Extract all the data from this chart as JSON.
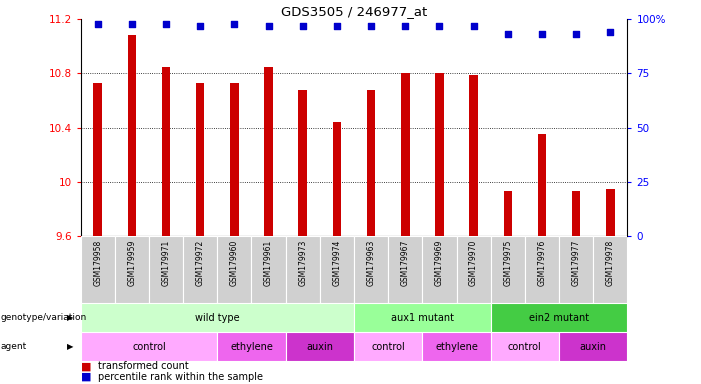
{
  "title": "GDS3505 / 246977_at",
  "samples": [
    "GSM179958",
    "GSM179959",
    "GSM179971",
    "GSM179972",
    "GSM179960",
    "GSM179961",
    "GSM179973",
    "GSM179974",
    "GSM179963",
    "GSM179967",
    "GSM179969",
    "GSM179970",
    "GSM179975",
    "GSM179976",
    "GSM179977",
    "GSM179978"
  ],
  "bar_values": [
    10.73,
    11.08,
    10.85,
    10.73,
    10.73,
    10.85,
    10.68,
    10.44,
    10.68,
    10.8,
    10.8,
    10.79,
    9.93,
    10.35,
    9.93,
    9.95
  ],
  "percentile_values": [
    98,
    98,
    98,
    97,
    98,
    97,
    97,
    97,
    97,
    97,
    97,
    97,
    93,
    93,
    93,
    94
  ],
  "ylim_left": [
    9.6,
    11.2
  ],
  "ylim_right": [
    0,
    100
  ],
  "bar_color": "#cc0000",
  "dot_color": "#0000cc",
  "bar_width": 0.25,
  "right_yticks": [
    0,
    25,
    50,
    75,
    100
  ],
  "right_yticklabels": [
    "0",
    "25",
    "50",
    "75",
    "100%"
  ],
  "left_yticks": [
    9.6,
    10.0,
    10.4,
    10.8,
    11.2
  ],
  "left_yticklabels": [
    "9.6",
    "10",
    "10.4",
    "10.8",
    "11.2"
  ],
  "genotype_groups": [
    {
      "label": "wild type",
      "start": 0,
      "end": 8,
      "color": "#ccffcc"
    },
    {
      "label": "aux1 mutant",
      "start": 8,
      "end": 12,
      "color": "#99ff99"
    },
    {
      "label": "ein2 mutant",
      "start": 12,
      "end": 16,
      "color": "#44cc44"
    }
  ],
  "agent_groups": [
    {
      "label": "control",
      "start": 0,
      "end": 4,
      "color": "#ffaaff"
    },
    {
      "label": "ethylene",
      "start": 4,
      "end": 6,
      "color": "#ee66ee"
    },
    {
      "label": "auxin",
      "start": 6,
      "end": 8,
      "color": "#cc33cc"
    },
    {
      "label": "control",
      "start": 8,
      "end": 10,
      "color": "#ffaaff"
    },
    {
      "label": "ethylene",
      "start": 10,
      "end": 12,
      "color": "#ee66ee"
    },
    {
      "label": "control",
      "start": 12,
      "end": 14,
      "color": "#ffaaff"
    },
    {
      "label": "auxin",
      "start": 14,
      "end": 16,
      "color": "#cc33cc"
    }
  ],
  "legend_bar_label": "transformed count",
  "legend_dot_label": "percentile rank within the sample",
  "genotype_label": "genotype/variation",
  "agent_label": "agent",
  "grid_lines": [
    10.0,
    10.4,
    10.8
  ],
  "label_row_color": "#d0d0d0"
}
